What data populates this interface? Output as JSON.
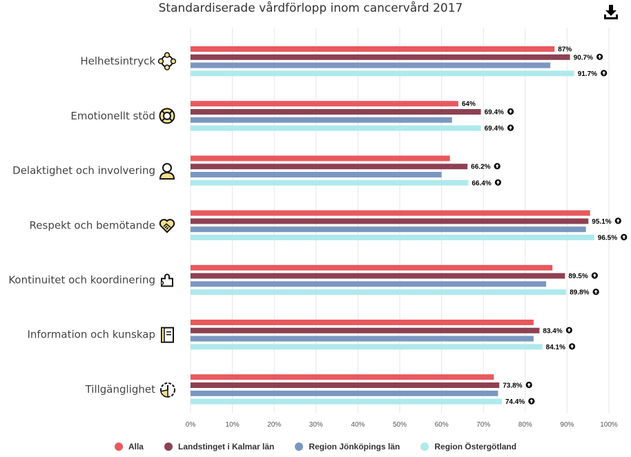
{
  "header": {
    "title": "Standardiserade vårdförlopp inom cancervård 2017",
    "download_icon": "download-icon"
  },
  "chart_data": {
    "type": "bar",
    "orientation": "horizontal",
    "title": "Standardiserade vårdförlopp inom cancervård 2017",
    "categories": [
      "Helhetsintryck",
      "Emotionellt stöd",
      "Delaktighet och involvering",
      "Respekt och bemötande",
      "Kontinuitet och koordinering",
      "Information och kunskap",
      "Tillgänglighet"
    ],
    "category_icons": [
      "people-circle-icon",
      "lifebuoy-icon",
      "person-icon",
      "handshake-heart-icon",
      "puzzle-icon",
      "book-icon",
      "clock-icon"
    ],
    "series": [
      {
        "name": "Alla",
        "color": "#e8595e",
        "values": [
          87,
          64,
          62,
          95.5,
          86.5,
          82,
          72.5
        ],
        "labels": [
          "87%",
          "64%",
          "",
          "",
          "",
          "",
          ""
        ],
        "marker_icon": [
          false,
          false,
          false,
          false,
          false,
          false,
          false
        ]
      },
      {
        "name": "Landstinget i Kalmar län",
        "color": "#8d4152",
        "values": [
          90.7,
          69.4,
          66.2,
          95.1,
          89.5,
          83.4,
          73.8
        ],
        "labels": [
          "90.7%",
          "69.4%",
          "66.2%",
          "95.1%",
          "89.5%",
          "83.4%",
          "73.8%"
        ],
        "marker_icon": [
          true,
          true,
          true,
          true,
          true,
          true,
          true
        ]
      },
      {
        "name": "Region Jönköpings län",
        "color": "#7a97c0",
        "values": [
          86,
          62.5,
          60,
          94.5,
          85,
          82,
          73.5
        ],
        "labels": [
          "",
          "",
          "",
          "",
          "",
          "",
          ""
        ],
        "marker_icon": [
          false,
          false,
          false,
          false,
          false,
          false,
          false
        ]
      },
      {
        "name": "Region Östergötland",
        "color": "#aee9ec",
        "values": [
          91.7,
          69.4,
          66.4,
          96.5,
          89.8,
          84.1,
          74.4
        ],
        "labels": [
          "91.7%",
          "69.4%",
          "66.4%",
          "96.5%",
          "89.8%",
          "84.1%",
          "74.4%"
        ],
        "marker_icon": [
          true,
          true,
          true,
          true,
          true,
          true,
          true
        ]
      }
    ],
    "x_ticks": [
      "0%",
      "10%",
      "20%",
      "30%",
      "40%",
      "50%",
      "60%",
      "70%",
      "80%",
      "90%",
      "100%"
    ],
    "xlim": [
      0,
      100
    ],
    "grid": true,
    "legend_position": "bottom"
  }
}
